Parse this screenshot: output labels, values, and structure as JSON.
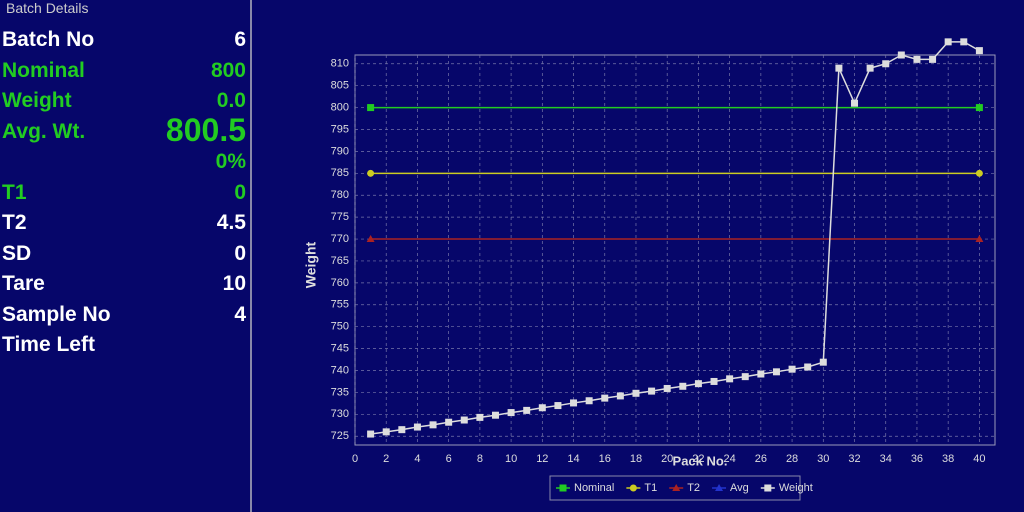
{
  "panel": {
    "title": "Batch Details",
    "rows": [
      {
        "label": "Batch No",
        "value": "6",
        "color": "#ffffff"
      },
      {
        "label": "Nominal",
        "value": "800",
        "color": "#22cc22"
      },
      {
        "label": "Weight",
        "value": "0.0",
        "color": "#22cc22"
      },
      {
        "label": "Avg. Wt.",
        "value": "800.5",
        "color": "#22cc22"
      },
      {
        "value": "0%",
        "color": "#22cc22"
      },
      {
        "label": "T1",
        "value": "0",
        "color": "#22cc22"
      },
      {
        "label": "T2",
        "value": "4.5",
        "color": "#ffffff"
      },
      {
        "label": "SD",
        "value": "0",
        "color": "#ffffff"
      },
      {
        "label": "Tare",
        "value": "10",
        "color": "#ffffff"
      },
      {
        "label": "Sample No",
        "value": "4",
        "color": "#ffffff"
      },
      {
        "label": "Time Left",
        "color": "#ffffff"
      }
    ]
  },
  "chart_data": {
    "type": "line",
    "x_label": "Pack No.",
    "y_label": "Weight",
    "xlim": [
      0,
      41
    ],
    "xticks": [
      0,
      2,
      4,
      6,
      8,
      10,
      12,
      14,
      16,
      18,
      20,
      22,
      24,
      26,
      28,
      30,
      32,
      34,
      36,
      38,
      40
    ],
    "ylim": [
      723,
      812
    ],
    "yticks": [
      725,
      730,
      735,
      740,
      745,
      750,
      755,
      760,
      765,
      770,
      775,
      780,
      785,
      790,
      795,
      800,
      805,
      810
    ],
    "grid": true,
    "series": [
      {
        "name": "Nominal",
        "color": "#22cc22",
        "marker": "square",
        "x": [
          1,
          40
        ],
        "values": [
          800,
          800
        ]
      },
      {
        "name": "T1",
        "color": "#cccc22",
        "marker": "circle",
        "x": [
          1,
          40
        ],
        "values": [
          785,
          785
        ]
      },
      {
        "name": "T2",
        "color": "#aa2222",
        "marker": "triangle",
        "x": [
          1,
          40
        ],
        "values": [
          770,
          770
        ]
      },
      {
        "name": "Avg",
        "color": "#2233cc",
        "marker": "triangle",
        "x": [],
        "values": []
      },
      {
        "name": "Weight",
        "color": "#dddddd",
        "marker": "square",
        "x": [
          1,
          2,
          3,
          4,
          5,
          6,
          7,
          8,
          9,
          10,
          11,
          12,
          13,
          14,
          15,
          16,
          17,
          18,
          19,
          20,
          21,
          22,
          23,
          24,
          25,
          26,
          27,
          28,
          29,
          30,
          31,
          32,
          33,
          34,
          35,
          36,
          37,
          38,
          39,
          40
        ],
        "values": [
          725.5,
          726,
          726.5,
          727.1,
          727.6,
          728.2,
          728.7,
          729.3,
          729.8,
          730.4,
          730.9,
          731.5,
          732,
          732.6,
          733.1,
          733.7,
          734.2,
          734.8,
          735.3,
          735.9,
          736.4,
          737,
          737.5,
          738.1,
          738.6,
          739.2,
          739.7,
          740.3,
          740.8,
          741.9,
          809,
          801,
          809,
          810,
          812,
          811,
          811,
          815,
          815,
          813
        ]
      }
    ]
  }
}
